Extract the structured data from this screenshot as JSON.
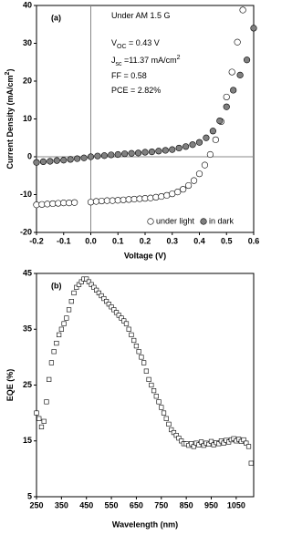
{
  "chart_data": [
    {
      "type": "scatter",
      "panel_label": "(a)",
      "annotations": [
        [
          {
            "text": "Under AM 1.5 G"
          }
        ],
        [
          {
            "text": "V"
          },
          {
            "text": "OC",
            "shift": "sub"
          },
          {
            "text": " = 0.43 V"
          }
        ],
        [
          {
            "text": "J"
          },
          {
            "text": "sc",
            "shift": "sub"
          },
          {
            "text": " =11.37 mA/cm"
          },
          {
            "text": "2",
            "shift": "super"
          }
        ],
        [
          {
            "text": "FF = 0.58"
          }
        ],
        [
          {
            "text": "PCE = 2.82%"
          }
        ]
      ],
      "xlabel": "Voltage (V)",
      "ylabel": [
        {
          "text": "Current Density (mA/cm"
        },
        {
          "text": "2",
          "shift": "super"
        },
        {
          "text": ")"
        }
      ],
      "xlim": [
        -0.2,
        0.6
      ],
      "xticks": [
        -0.2,
        -0.1,
        {
          "value": 0,
          "label": "0.0"
        },
        0.1,
        0.2,
        0.3,
        0.4,
        0.5,
        0.6
      ],
      "ylim": [
        -20,
        40
      ],
      "yticks": [
        -20,
        -10,
        0,
        10,
        20,
        30,
        40
      ],
      "zero_lines": true,
      "legend": "lower right",
      "series": [
        {
          "name": "under light",
          "color": "#ffffff",
          "marker": "circle",
          "x": [
            -0.2,
            -0.18,
            -0.16,
            -0.14,
            -0.12,
            -0.1,
            -0.08,
            -0.06,
            0.0,
            0.02,
            0.04,
            0.06,
            0.08,
            0.1,
            0.12,
            0.14,
            0.16,
            0.18,
            0.2,
            0.22,
            0.24,
            0.26,
            0.28,
            0.3,
            0.32,
            0.34,
            0.36,
            0.38,
            0.4,
            0.42,
            0.44,
            0.46,
            0.48,
            0.5,
            0.52,
            0.54,
            0.56
          ],
          "values": [
            -12.7,
            -12.6,
            -12.5,
            -12.4,
            -12.3,
            -12.2,
            -12.2,
            -12.1,
            -12.0,
            -11.8,
            -11.7,
            -11.6,
            -11.6,
            -11.5,
            -11.4,
            -11.3,
            -11.2,
            -11.1,
            -11.0,
            -10.9,
            -10.7,
            -10.5,
            -10.2,
            -9.8,
            -9.3,
            -8.6,
            -7.6,
            -6.3,
            -4.5,
            -2.2,
            0.6,
            4.5,
            9.3,
            15.8,
            22.4,
            30.3,
            38.8
          ]
        },
        {
          "name": "in dark",
          "color": "#808080",
          "marker": "circle",
          "x": [
            -0.2,
            -0.175,
            -0.15,
            -0.125,
            -0.1,
            -0.075,
            -0.05,
            -0.025,
            0,
            0.025,
            0.05,
            0.075,
            0.1,
            0.125,
            0.15,
            0.175,
            0.2,
            0.225,
            0.25,
            0.275,
            0.3,
            0.325,
            0.35,
            0.375,
            0.4,
            0.425,
            0.45,
            0.475,
            0.5,
            0.525,
            0.55,
            0.575,
            0.6
          ],
          "values": [
            -1.5,
            -1.3,
            -1.2,
            -1.0,
            -0.9,
            -0.7,
            -0.5,
            -0.3,
            0.0,
            0.2,
            0.3,
            0.5,
            0.6,
            0.8,
            0.9,
            1.0,
            1.2,
            1.3,
            1.5,
            1.7,
            1.9,
            2.3,
            2.7,
            3.2,
            3.8,
            5.0,
            6.8,
            9.5,
            13.2,
            17.6,
            21.6,
            25.6,
            34.0
          ]
        }
      ]
    },
    {
      "type": "scatter",
      "panel_label": "(b)",
      "xlabel": "Wavelength (nm)",
      "ylabel": [
        {
          "text": "EQE (%)"
        }
      ],
      "xlim": [
        250,
        1120
      ],
      "xticks": [
        250,
        350,
        450,
        550,
        650,
        750,
        850,
        950,
        1050
      ],
      "ylim": [
        5,
        45
      ],
      "yticks": [
        5,
        15,
        25,
        35,
        45
      ],
      "series": [
        {
          "color": "#ffffff",
          "marker": "square",
          "x": [
            250,
            260,
            270,
            280,
            290,
            300,
            310,
            320,
            330,
            340,
            350,
            360,
            370,
            380,
            390,
            400,
            410,
            420,
            430,
            440,
            450,
            460,
            470,
            480,
            490,
            500,
            510,
            520,
            530,
            540,
            550,
            560,
            570,
            580,
            590,
            600,
            610,
            620,
            630,
            640,
            650,
            660,
            670,
            680,
            690,
            700,
            710,
            720,
            730,
            740,
            750,
            760,
            770,
            780,
            790,
            800,
            810,
            820,
            830,
            840,
            850,
            860,
            870,
            880,
            890,
            900,
            910,
            920,
            930,
            940,
            950,
            960,
            970,
            980,
            990,
            1000,
            1010,
            1020,
            1030,
            1040,
            1050,
            1060,
            1070,
            1080,
            1090,
            1100,
            1110
          ],
          "values": [
            20,
            19,
            17.5,
            18.5,
            22,
            26,
            29,
            31,
            32.5,
            34,
            35,
            36,
            37,
            38.5,
            40,
            41.5,
            42.5,
            43,
            43.5,
            44,
            44,
            43.5,
            43,
            42.5,
            42,
            41.5,
            41,
            40.5,
            40,
            39.5,
            39,
            38.5,
            38,
            37.5,
            37,
            36.5,
            36,
            35,
            34,
            33,
            32,
            31,
            30,
            29,
            27.5,
            26,
            25,
            24,
            23,
            22,
            21,
            20,
            19,
            18,
            17,
            16.5,
            16,
            15.5,
            15,
            14.5,
            14.5,
            14.2,
            14.5,
            14,
            14.6,
            14.3,
            14.8,
            14.2,
            14.6,
            14.4,
            14.9,
            14.3,
            14.7,
            14.5,
            15,
            14.6,
            15.1,
            14.8,
            15.2,
            15.4,
            15,
            15.3,
            14.9,
            15.2,
            14.6,
            14,
            11
          ]
        }
      ]
    }
  ]
}
